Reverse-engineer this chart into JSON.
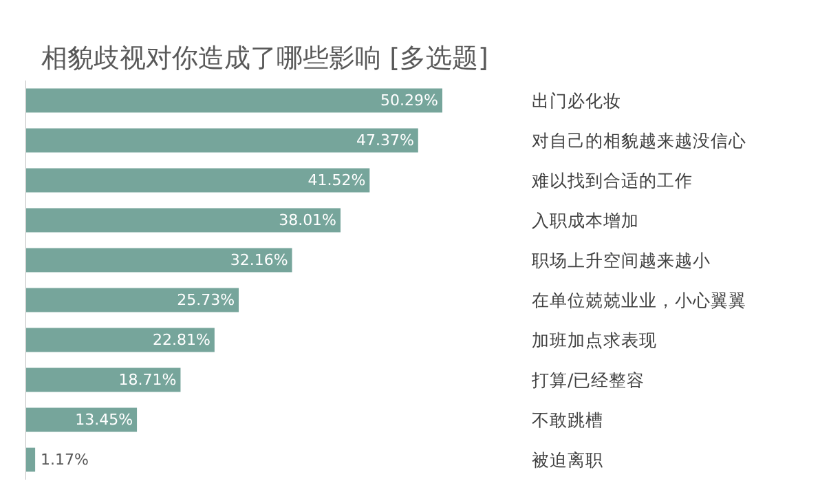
{
  "chart_data": {
    "type": "bar",
    "orientation": "horizontal",
    "title": "相貌歧视对你造成了哪些影响   [多选题]",
    "categories": [
      "出门必化妆",
      "对自己的相貌越来越没信心",
      "难以找到合适的工作",
      "入职成本增加",
      "职场上升空间越来越小",
      "在单位兢兢业业，小心翼翼",
      "加班加点求表现",
      "打算/已经整容",
      "不敢跳槽",
      "被迫离职"
    ],
    "values": [
      50.29,
      47.37,
      41.52,
      38.01,
      32.16,
      25.73,
      22.81,
      18.71,
      13.45,
      1.17
    ],
    "value_labels": [
      "50.29%",
      "47.37%",
      "41.52%",
      "38.01%",
      "32.16%",
      "25.73%",
      "22.81%",
      "18.71%",
      "13.45%",
      "1.17%"
    ],
    "color": "#76a59b"
  }
}
